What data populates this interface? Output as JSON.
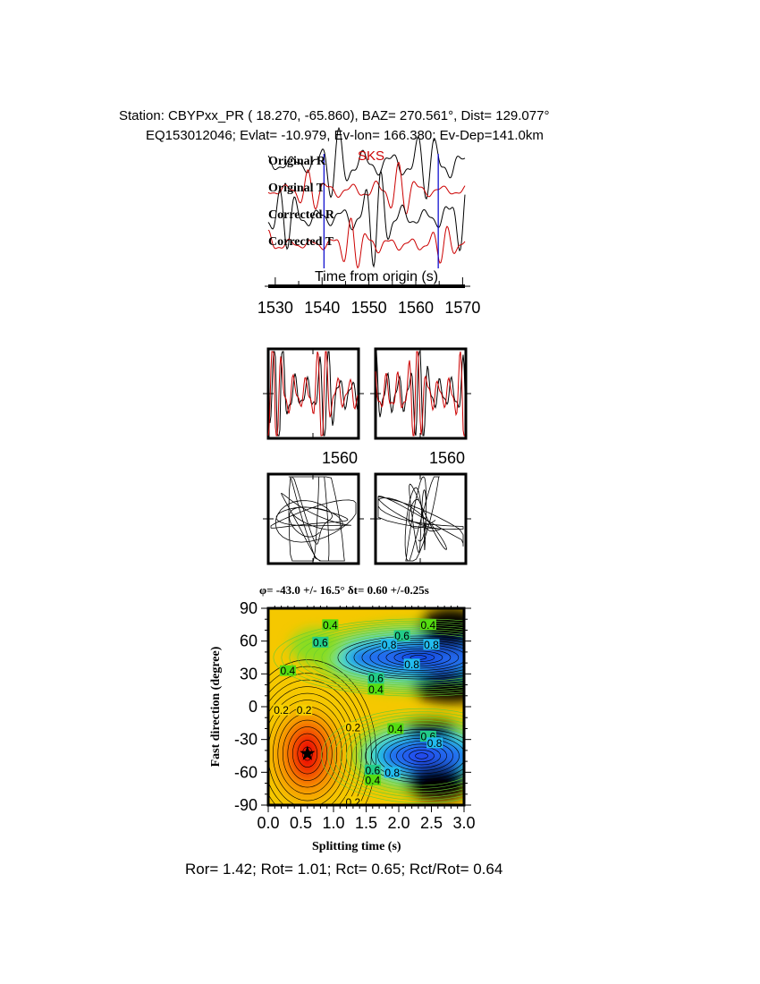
{
  "header": {
    "station_line": "Station: CBYPxx_PR (  18.270,  -65.860), BAZ=  270.561°, Dist=  129.077°",
    "event_line": "EQ153012046; Evlat= -10.979, Ev-lon= 166.380; Ev-Dep=141.0km"
  },
  "chart_data": [
    {
      "type": "line",
      "name": "waveforms",
      "phase_label": "SKS",
      "trace_labels": [
        "Original R",
        "Original T",
        "Corrected R",
        "Corrected T"
      ],
      "trace_colors": [
        "#000000",
        "#cc0000",
        "#000000",
        "#cc0000"
      ],
      "window_markers_s": [
        1540.4,
        1564.8
      ],
      "marker_color": "#0000cc",
      "xlabel": "Time from origin (s)",
      "xlim": [
        1528.5,
        1570.5
      ],
      "xticks": [
        "1530",
        "1540",
        "1550",
        "1560",
        "1570"
      ]
    },
    {
      "type": "line",
      "name": "waveform-comparison",
      "panels": 2,
      "xtick_labels": [
        "1560",
        "1560"
      ],
      "colors": [
        "#000000",
        "#cc0000"
      ]
    },
    {
      "type": "line",
      "name": "particle-motion",
      "panels": 2
    },
    {
      "type": "heatmap",
      "title": "φ= -43.0 +/- 16.5° δt= 0.60 +/-0.25s",
      "xlabel": "Splitting time (s)",
      "ylabel": "Fast direction (degree)",
      "xlim": [
        0.0,
        3.0
      ],
      "ylim": [
        -90,
        90
      ],
      "xticks": [
        "0.0",
        "0.5",
        "1.0",
        "1.5",
        "2.0",
        "2.5",
        "3.0"
      ],
      "yticks": [
        "90",
        "60",
        "30",
        "0",
        "-30",
        "-60",
        "-90"
      ],
      "best_fit": {
        "dt": 0.6,
        "phi": -43.0
      },
      "contour_labels": [
        {
          "v": "0.4",
          "dt": 0.95,
          "phi": 75
        },
        {
          "v": "0.4",
          "dt": 2.45,
          "phi": 75
        },
        {
          "v": "0.6",
          "dt": 2.05,
          "phi": 65
        },
        {
          "v": "0.8",
          "dt": 1.85,
          "phi": 57
        },
        {
          "v": "0.8",
          "dt": 2.5,
          "phi": 57
        },
        {
          "v": "0.6",
          "dt": 0.8,
          "phi": 59
        },
        {
          "v": "0.4",
          "dt": 0.3,
          "phi": 33
        },
        {
          "v": "0.8",
          "dt": 2.2,
          "phi": 39
        },
        {
          "v": "0.6",
          "dt": 1.65,
          "phi": 26
        },
        {
          "v": "0.4",
          "dt": 1.65,
          "phi": 16
        },
        {
          "v": "0.2",
          "dt": 0.2,
          "phi": -3
        },
        {
          "v": "0.2",
          "dt": 0.55,
          "phi": -3
        },
        {
          "v": "0.2",
          "dt": 1.3,
          "phi": -19
        },
        {
          "v": "0.4",
          "dt": 1.95,
          "phi": -20
        },
        {
          "v": "0.6",
          "dt": 2.45,
          "phi": -27
        },
        {
          "v": "0.8",
          "dt": 2.55,
          "phi": -33
        },
        {
          "v": "0.6",
          "dt": 1.6,
          "phi": -58
        },
        {
          "v": "0.8",
          "dt": 1.9,
          "phi": -60
        },
        {
          "v": "0.4",
          "dt": 1.6,
          "phi": -67
        },
        {
          "v": "0.2",
          "dt": 1.3,
          "phi": -87
        }
      ],
      "colormap": [
        "#ee1100",
        "#f5a000",
        "#f5d000",
        "#88dd22",
        "#22dddd",
        "#2266ee",
        "#000000"
      ]
    }
  ],
  "footer": {
    "ratios": "Ror= 1.42; Rot= 1.01; Rct= 0.65; Rct/Rot= 0.64"
  }
}
